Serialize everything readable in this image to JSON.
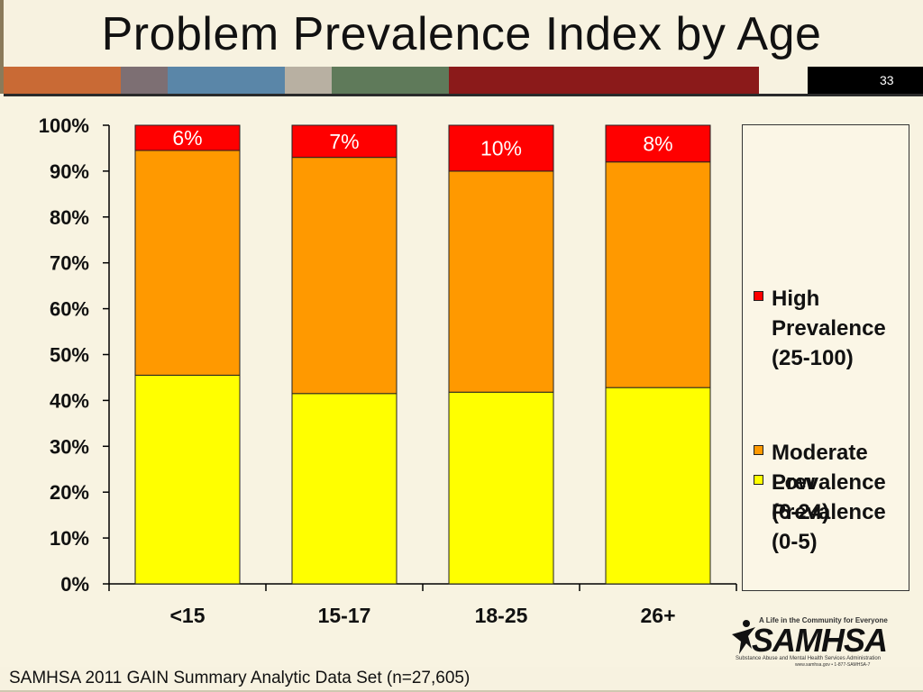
{
  "slide": {
    "title": "Problem Prevalence Index by Age",
    "page_number": "33",
    "footer": "SAMHSA 2011 GAIN Summary Analytic Data Set (n=27,605)",
    "band_colors": [
      "#c96a35",
      "#7d6f73",
      "#5a86a8",
      "#b8b0a2",
      "#5f7a5a",
      "#8b1a1a"
    ]
  },
  "logo": {
    "tagline": "A Life in the Community for Everyone",
    "wordmark": "SAMHSA",
    "subtitle": "Substance Abuse and Mental Health Services Administration",
    "contact": "www.samhsa.gov • 1-877-SAMHSA-7"
  },
  "chart_data": {
    "type": "bar",
    "stacked": true,
    "categories": [
      "<15",
      "15-17",
      "18-25",
      "26+"
    ],
    "series": [
      {
        "name": "Low Prevalence (0-5)",
        "color": "#ffff00",
        "values": [
          45.5,
          41.5,
          41.8,
          42.8
        ]
      },
      {
        "name": "Moderate Prevalence (6-24)",
        "color": "#ff9900",
        "values": [
          49.0,
          51.5,
          48.2,
          49.2
        ]
      },
      {
        "name": "High Prevalence (25-100)",
        "color": "#ff0000",
        "values": [
          5.5,
          7.0,
          10.0,
          8.0
        ]
      }
    ],
    "data_labels": [
      "6%",
      "7%",
      "10%",
      "8%"
    ],
    "ylim": [
      0,
      100
    ],
    "yticks": [
      "0%",
      "10%",
      "20%",
      "30%",
      "40%",
      "50%",
      "60%",
      "70%",
      "80%",
      "90%",
      "100%"
    ],
    "grid": false,
    "legend_position": "right",
    "legend": [
      {
        "lines": [
          "High",
          "Prevalence",
          "(25-100)"
        ],
        "color": "#ff0000"
      },
      {
        "lines": [
          "Moderate",
          "Prevalence",
          "(6-24)"
        ],
        "color": "#ff9900"
      },
      {
        "lines": [
          "Low",
          "Prevalence",
          "(0-5)"
        ],
        "color": "#ffff00"
      }
    ]
  }
}
